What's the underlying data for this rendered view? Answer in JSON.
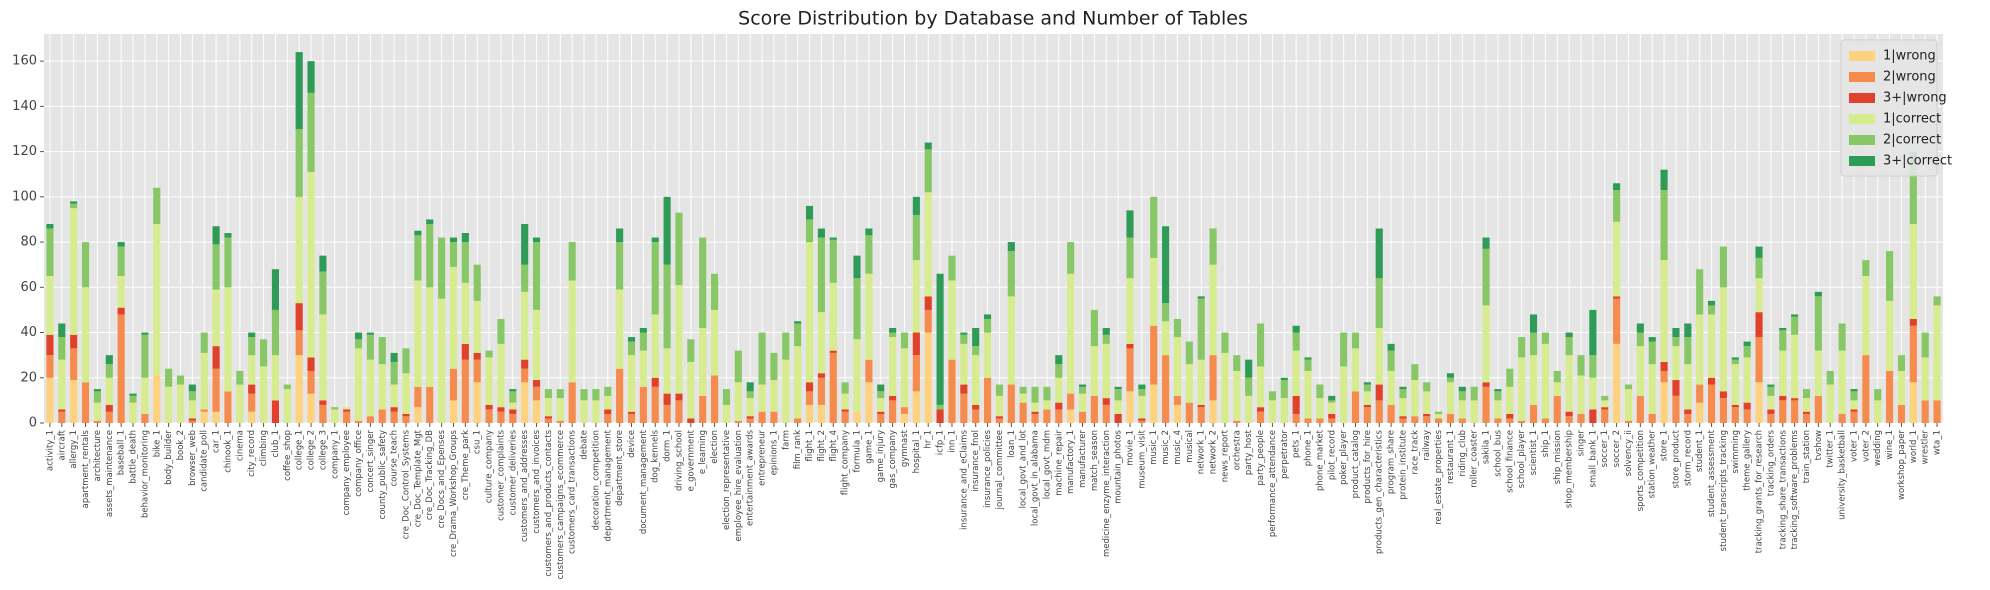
{
  "chart_data": {
    "type": "bar",
    "stacked": true,
    "title": "Score Distribution by Database and Number of Tables",
    "categories": [
      "activity_1",
      "aircraft",
      "allergy_1",
      "apartment_rentals",
      "architecture",
      "assets_maintenance",
      "baseball_1",
      "battle_death",
      "behavior_monitoring",
      "bike_1",
      "body_builder",
      "book_2",
      "browser_web",
      "candidate_poll",
      "car_1",
      "chinook_1",
      "cinema",
      "city_record",
      "climbing",
      "club_1",
      "coffee_shop",
      "college_1",
      "college_2",
      "college_3",
      "company_1",
      "company_employee",
      "company_office",
      "concert_singer",
      "county_public_safety",
      "course_teach",
      "cre_Doc_Control_Systems",
      "cre_Doc_Template_Mgt",
      "cre_Doc_Tracking_DB",
      "cre_Docs_and_Epenses",
      "cre_Drama_Workshop_Groups",
      "cre_Theme_park",
      "csu_1",
      "culture_company",
      "customer_complaints",
      "customer_deliveries",
      "customers_and_addresses",
      "customers_and_invoices",
      "customers_and_products_contacts",
      "customers_campaigns_ecommerce",
      "customers_card_transactions",
      "debate",
      "decoration_competition",
      "department_management",
      "department_store",
      "device",
      "document_management",
      "dog_kennels",
      "dorm_1",
      "driving_school",
      "e_government",
      "e_learning",
      "election",
      "election_representative",
      "employee_hire_evaluation",
      "entertainment_awards",
      "entrepreneur",
      "epinions_1",
      "farm",
      "film_rank",
      "flight_1",
      "flight_2",
      "flight_4",
      "flight_company",
      "formula_1",
      "game_1",
      "game_injury",
      "gas_company",
      "gymnast",
      "hospital_1",
      "hr_1",
      "icfp_1",
      "inn_1",
      "insurance_and_eClaims",
      "insurance_fnol",
      "insurance_policies",
      "journal_committee",
      "loan_1",
      "local_govt_and_lot",
      "local_govt_in_alabama",
      "local_govt_mdm",
      "machine_repair",
      "manufactory_1",
      "manufacturer",
      "match_season",
      "medicine_enzyme_interaction",
      "mountain_photos",
      "movie_1",
      "museum_visit",
      "music_1",
      "music_2",
      "music_4",
      "musical",
      "network_1",
      "network_2",
      "news_report",
      "orchestra",
      "party_host",
      "party_people",
      "performance_attendance",
      "perpetrator",
      "pets_1",
      "phone_1",
      "phone_market",
      "pilot_record",
      "poker_player",
      "product_catalog",
      "products_for_hire",
      "products_gen_characteristics",
      "program_share",
      "protein_institute",
      "race_track",
      "railway",
      "real_estate_properties",
      "restaurant_1",
      "riding_club",
      "roller_coaster",
      "sakila_1",
      "school_bus",
      "school_finance",
      "school_player",
      "scientist_1",
      "ship_1",
      "ship_mission",
      "shop_membership",
      "singer",
      "small_bank_1",
      "soccer_1",
      "soccer_2",
      "solvency_ii",
      "sports_competition",
      "station_weather",
      "store_1",
      "store_product",
      "storm_record",
      "student_1",
      "student_assessment",
      "student_transcripts_tracking",
      "swimming",
      "theme_gallery",
      "tracking_grants_for_research",
      "tracking_orders",
      "tracking_share_transactions",
      "tracking_software_problems",
      "train_station",
      "tvshow",
      "twitter_1",
      "university_basketball",
      "voter_1",
      "voter_2",
      "wedding",
      "wine_1",
      "workshop_paper",
      "world_1",
      "wrestler",
      "wta_1"
    ],
    "series": [
      {
        "name": "1|wrong",
        "color": "#fed27f",
        "values": [
          20,
          0,
          19,
          0,
          0,
          0,
          0,
          0,
          0,
          21,
          0,
          0,
          0,
          5,
          5,
          0,
          0,
          5,
          0,
          0,
          0,
          30,
          13,
          0,
          0,
          0,
          0,
          0,
          0,
          0,
          0,
          7,
          0,
          0,
          10,
          0,
          18,
          0,
          0,
          0,
          18,
          10,
          0,
          0,
          0,
          0,
          0,
          0,
          0,
          0,
          0,
          0,
          0,
          0,
          0,
          0,
          0,
          0,
          0,
          0,
          0,
          0,
          0,
          0,
          8,
          8,
          0,
          0,
          5,
          18,
          0,
          0,
          4,
          14,
          40,
          0,
          0,
          0,
          0,
          0,
          0,
          0,
          0,
          0,
          0,
          0,
          6,
          0,
          0,
          0,
          0,
          14,
          0,
          17,
          0,
          8,
          0,
          0,
          10,
          0,
          0,
          0,
          0,
          0,
          0,
          0,
          0,
          0,
          0,
          0,
          0,
          0,
          0,
          0,
          0,
          0,
          0,
          0,
          0,
          0,
          0,
          0,
          0,
          0,
          0,
          0,
          0,
          0,
          0,
          0,
          0,
          0,
          35,
          0,
          0,
          0,
          18,
          0,
          0,
          9,
          0,
          0,
          0,
          0,
          18,
          0,
          0,
          0,
          0,
          0,
          0,
          0,
          0,
          0,
          0,
          0,
          0,
          18,
          0,
          0
        ]
      },
      {
        "name": "2|wrong",
        "color": "#f58b4c",
        "values": [
          10,
          5,
          14,
          18,
          1,
          5,
          48,
          0,
          4,
          0,
          0,
          0,
          1,
          1,
          19,
          14,
          0,
          8,
          0,
          0,
          0,
          11,
          10,
          8,
          0,
          5,
          1,
          3,
          6,
          5,
          3,
          9,
          16,
          0,
          14,
          28,
          10,
          6,
          5,
          4,
          6,
          6,
          2,
          1,
          18,
          0,
          0,
          4,
          24,
          4,
          16,
          16,
          8,
          10,
          0,
          12,
          21,
          0,
          1,
          2,
          5,
          5,
          0,
          2,
          6,
          12,
          31,
          5,
          0,
          10,
          4,
          10,
          3,
          16,
          10,
          0,
          28,
          13,
          6,
          20,
          2,
          17,
          9,
          4,
          6,
          6,
          7,
          5,
          12,
          8,
          0,
          19,
          1,
          26,
          30,
          4,
          9,
          7,
          20,
          0,
          1,
          0,
          5,
          0,
          0,
          4,
          2,
          2,
          2,
          0,
          14,
          7,
          10,
          8,
          2,
          3,
          3,
          2,
          4,
          2,
          0,
          16,
          2,
          2,
          1,
          8,
          2,
          12,
          3,
          4,
          0,
          6,
          20,
          1,
          12,
          4,
          5,
          12,
          4,
          8,
          17,
          11,
          7,
          6,
          20,
          4,
          10,
          10,
          4,
          12,
          0,
          4,
          5,
          30,
          0,
          23,
          8,
          25,
          10,
          10
        ]
      },
      {
        "name": "3+|wrong",
        "color": "#e0412d",
        "values": [
          9,
          1,
          6,
          0,
          0,
          3,
          3,
          0,
          0,
          0,
          0,
          0,
          1,
          0,
          10,
          0,
          0,
          4,
          0,
          10,
          0,
          12,
          6,
          2,
          0,
          1,
          0,
          0,
          0,
          2,
          1,
          0,
          0,
          0,
          0,
          7,
          3,
          2,
          2,
          2,
          4,
          3,
          1,
          0,
          0,
          0,
          0,
          2,
          0,
          1,
          0,
          4,
          5,
          3,
          2,
          0,
          0,
          0,
          0,
          1,
          0,
          0,
          0,
          0,
          4,
          2,
          1,
          1,
          0,
          0,
          1,
          2,
          0,
          10,
          6,
          6,
          0,
          4,
          2,
          0,
          1,
          0,
          0,
          1,
          0,
          3,
          0,
          0,
          0,
          3,
          4,
          2,
          1,
          0,
          0,
          0,
          0,
          1,
          0,
          0,
          0,
          0,
          2,
          0,
          0,
          8,
          0,
          0,
          2,
          0,
          0,
          1,
          7,
          0,
          1,
          0,
          1,
          0,
          0,
          0,
          0,
          2,
          0,
          2,
          0,
          0,
          0,
          0,
          2,
          0,
          6,
          1,
          1,
          0,
          0,
          0,
          4,
          7,
          2,
          0,
          3,
          3,
          1,
          3,
          11,
          2,
          2,
          1,
          1,
          0,
          0,
          0,
          1,
          0,
          0,
          0,
          0,
          3,
          0,
          0
        ]
      },
      {
        "name": "1|correct",
        "color": "#d6ec8e",
        "values": [
          26,
          22,
          56,
          42,
          8,
          12,
          14,
          9,
          16,
          67,
          16,
          17,
          8,
          25,
          25,
          46,
          17,
          13,
          25,
          20,
          15,
          47,
          82,
          38,
          6,
          1,
          32,
          25,
          20,
          10,
          18,
          47,
          44,
          55,
          45,
          27,
          23,
          21,
          28,
          3,
          30,
          31,
          8,
          10,
          45,
          10,
          10,
          6,
          35,
          25,
          16,
          28,
          20,
          48,
          25,
          30,
          29,
          8,
          17,
          8,
          12,
          14,
          28,
          32,
          62,
          27,
          30,
          7,
          32,
          38,
          6,
          26,
          26,
          32,
          46,
          0,
          35,
          18,
          22,
          20,
          9,
          39,
          4,
          4,
          4,
          11,
          53,
          8,
          22,
          24,
          6,
          29,
          10,
          30,
          15,
          26,
          17,
          20,
          40,
          31,
          22,
          12,
          18,
          10,
          11,
          20,
          21,
          9,
          5,
          25,
          19,
          6,
          25,
          15,
          8,
          16,
          10,
          2,
          14,
          8,
          10,
          34,
          8,
          12,
          28,
          22,
          33,
          6,
          25,
          17,
          14,
          3,
          33,
          14,
          22,
          22,
          45,
          15,
          20,
          31,
          28,
          46,
          18,
          20,
          15,
          6,
          20,
          28,
          6,
          20,
          17,
          28,
          4,
          35,
          10,
          31,
          15,
          42,
          19,
          42
        ]
      },
      {
        "name": "2|correct",
        "color": "#87c766",
        "values": [
          21,
          10,
          2,
          20,
          5,
          6,
          13,
          3,
          19,
          16,
          8,
          4,
          4,
          9,
          20,
          22,
          6,
          8,
          12,
          20,
          2,
          30,
          35,
          19,
          1,
          0,
          4,
          11,
          12,
          10,
          11,
          20,
          28,
          27,
          11,
          18,
          16,
          3,
          11,
          5,
          12,
          30,
          4,
          4,
          17,
          5,
          5,
          4,
          21,
          6,
          8,
          32,
          37,
          32,
          10,
          40,
          16,
          7,
          14,
          3,
          23,
          12,
          12,
          10,
          10,
          33,
          19,
          5,
          27,
          17,
          3,
          2,
          7,
          20,
          19,
          2,
          11,
          4,
          4,
          6,
          5,
          20,
          3,
          7,
          6,
          6,
          14,
          3,
          16,
          4,
          5,
          18,
          3,
          27,
          8,
          8,
          10,
          27,
          16,
          9,
          7,
          8,
          19,
          4,
          8,
          8,
          5,
          6,
          1,
          15,
          7,
          3,
          22,
          9,
          4,
          7,
          4,
          1,
          2,
          4,
          6,
          25,
          4,
          8,
          9,
          10,
          5,
          5,
          8,
          9,
          10,
          2,
          14,
          2,
          6,
          10,
          31,
          4,
          12,
          20,
          4,
          18,
          2,
          5,
          9,
          4,
          9,
          8,
          4,
          24,
          6,
          12,
          4,
          7,
          5,
          22,
          7,
          26,
          11,
          4
        ]
      },
      {
        "name": "3+|correct",
        "color": "#2e9b57",
        "values": [
          2,
          6,
          1,
          0,
          1,
          4,
          2,
          1,
          1,
          0,
          0,
          0,
          3,
          0,
          8,
          2,
          0,
          2,
          0,
          18,
          0,
          34,
          14,
          7,
          0,
          0,
          3,
          1,
          0,
          4,
          0,
          2,
          2,
          0,
          2,
          4,
          0,
          0,
          0,
          1,
          18,
          2,
          0,
          0,
          0,
          0,
          0,
          0,
          6,
          2,
          2,
          2,
          30,
          0,
          0,
          0,
          0,
          0,
          0,
          4,
          0,
          0,
          0,
          1,
          6,
          4,
          1,
          0,
          10,
          3,
          3,
          2,
          0,
          8,
          3,
          58,
          0,
          1,
          8,
          2,
          0,
          4,
          0,
          0,
          0,
          4,
          0,
          1,
          0,
          3,
          1,
          12,
          2,
          0,
          34,
          0,
          0,
          1,
          0,
          0,
          0,
          8,
          0,
          0,
          1,
          3,
          1,
          0,
          2,
          0,
          0,
          1,
          22,
          3,
          1,
          0,
          0,
          0,
          2,
          2,
          0,
          5,
          1,
          0,
          0,
          8,
          0,
          0,
          2,
          0,
          20,
          0,
          3,
          0,
          4,
          2,
          9,
          4,
          6,
          0,
          2,
          0,
          1,
          2,
          5,
          1,
          1,
          1,
          0,
          2,
          0,
          0,
          1,
          0,
          0,
          0,
          0,
          6,
          0,
          0
        ]
      }
    ],
    "ylim": [
      0,
      172
    ],
    "yticks": [
      0,
      20,
      40,
      60,
      80,
      100,
      120,
      140,
      160
    ],
    "grid": true,
    "legend": "upper right"
  }
}
